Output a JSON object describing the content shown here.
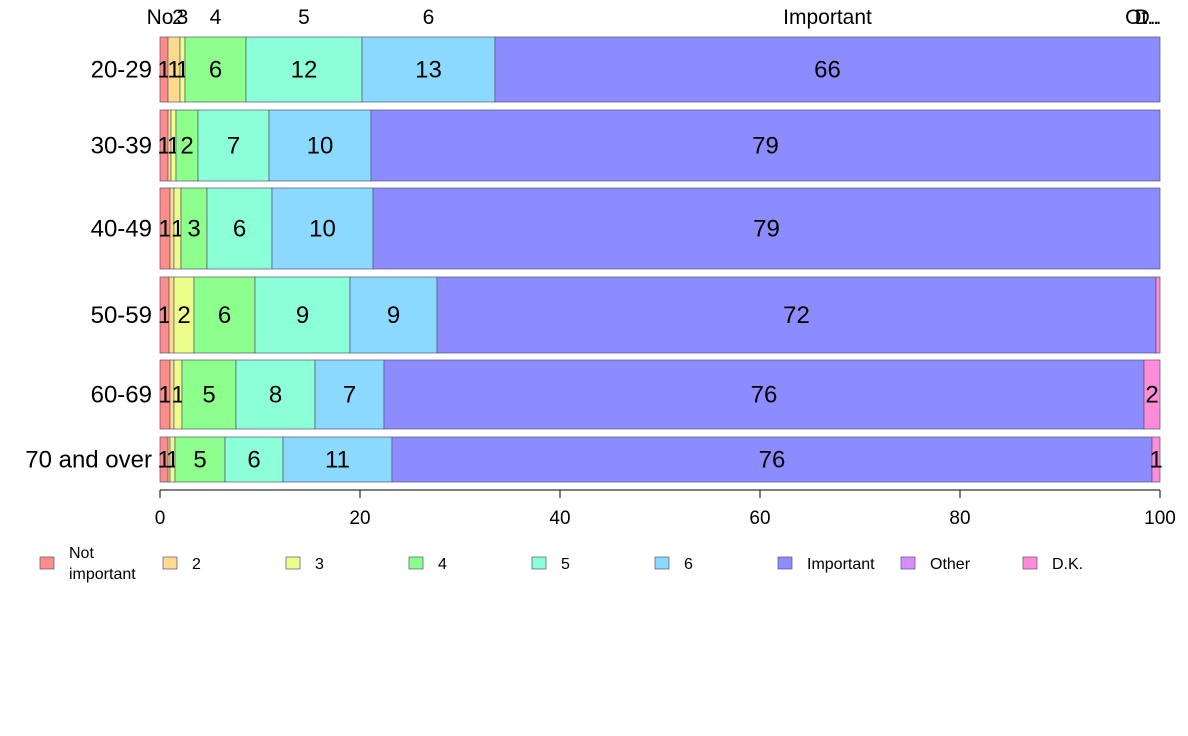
{
  "chart_data": {
    "type": "bar",
    "orientation": "horizontal",
    "stacked": true,
    "title": "",
    "xlabel": "",
    "ylabel": "",
    "xlim": [
      0,
      100
    ],
    "x_ticks": [
      0,
      20,
      40,
      60,
      80,
      100
    ],
    "grid": false,
    "legend_position": "bottom",
    "categories": [
      "20-29",
      "30-39",
      "40-49",
      "50-59",
      "60-69",
      "70 and over"
    ],
    "top_labels": [
      "No",
      "2",
      "3",
      "4",
      "5",
      "6",
      "Important",
      "Ot..",
      "D.."
    ],
    "series": [
      {
        "name": "Not important",
        "legend_label": [
          "Not",
          "important"
        ],
        "color": "#ff8c8c",
        "values": [
          0.8,
          0.8,
          1.0,
          0.9,
          1.0,
          0.8
        ],
        "labels": [
          "1",
          "1",
          "1",
          "1",
          "1",
          "1"
        ]
      },
      {
        "name": "2",
        "color": "#ffd98c",
        "values": [
          1.2,
          0.3,
          0.4,
          0.5,
          0.4,
          0.2
        ],
        "labels": [
          "1",
          "",
          "",
          "",
          "",
          ""
        ]
      },
      {
        "name": "3",
        "color": "#ecff8c",
        "values": [
          0.5,
          0.5,
          0.7,
          2.0,
          0.8,
          0.5
        ],
        "labels": [
          "1",
          "1",
          "1",
          "2",
          "1",
          "1"
        ]
      },
      {
        "name": "4",
        "color": "#8cff8c",
        "values": [
          6.1,
          2.2,
          2.6,
          6.1,
          5.4,
          5.0
        ],
        "labels": [
          "6",
          "2",
          "3",
          "6",
          "5",
          "5"
        ]
      },
      {
        "name": "5",
        "color": "#8cffd9",
        "values": [
          11.6,
          7.1,
          6.5,
          9.5,
          7.9,
          5.8
        ],
        "labels": [
          "12",
          "7",
          "6",
          "9",
          "8",
          "6"
        ]
      },
      {
        "name": "6",
        "color": "#8cd9ff",
        "values": [
          13.3,
          10.2,
          10.1,
          8.7,
          6.9,
          10.9
        ],
        "labels": [
          "13",
          "10",
          "10",
          "9",
          "7",
          "11"
        ]
      },
      {
        "name": "Important",
        "color": "#8c8cff",
        "values": [
          66.5,
          78.9,
          78.7,
          71.9,
          76.0,
          76.0
        ],
        "labels": [
          "66",
          "79",
          "79",
          "72",
          "76",
          "76"
        ]
      },
      {
        "name": "Other",
        "color": "#d98cff",
        "values": [
          0,
          0,
          0,
          0,
          0,
          0
        ],
        "labels": [
          "",
          "",
          "",
          "",
          "",
          ""
        ]
      },
      {
        "name": "D.K.",
        "color": "#ff8cd9",
        "values": [
          0,
          0,
          0,
          0.4,
          1.6,
          0.8
        ],
        "labels": [
          "",
          "",
          "",
          "",
          "2",
          "1"
        ]
      }
    ]
  }
}
